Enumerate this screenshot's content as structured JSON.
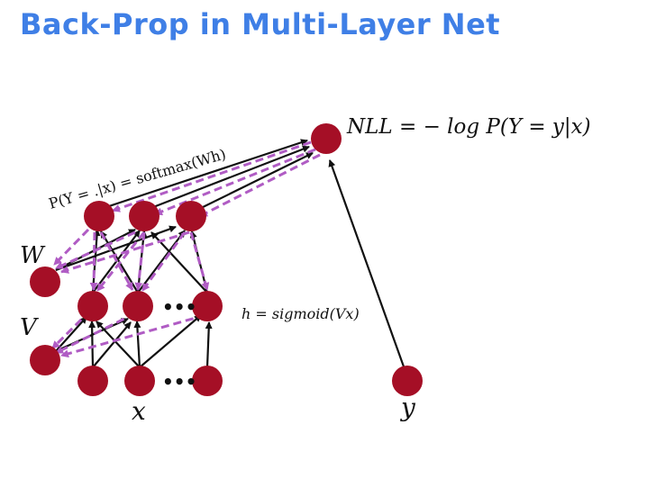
{
  "slide": {
    "title": "Back-Prop in Multi-Layer Net"
  },
  "labels": {
    "nll": "NLL = − log P(Y = y|x)",
    "softmax": "P(Y = .|x) = softmax(Wh)",
    "sigmoid": "h = sigmoid(Vx)",
    "W": "W",
    "V": "V",
    "x": "x",
    "y": "y",
    "ellipsis": "•••"
  },
  "colors": {
    "title": "#3f7fe6",
    "node": "#a50f26",
    "forward_arrow": "#111111",
    "backward_arrow": "#b05cc4"
  }
}
